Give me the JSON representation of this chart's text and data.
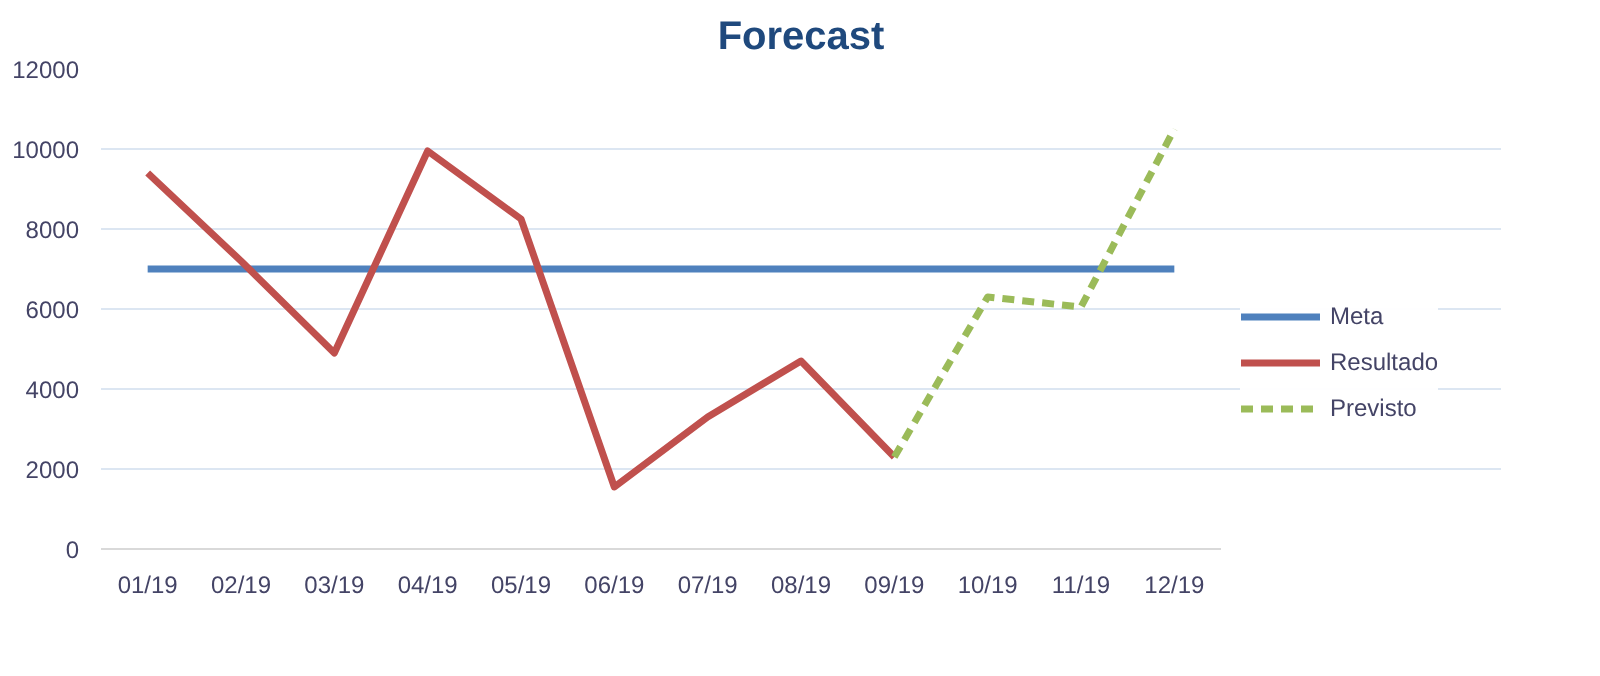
{
  "chart_data": {
    "type": "line",
    "title": "Forecast",
    "categories": [
      "01/19",
      "02/19",
      "03/19",
      "04/19",
      "05/19",
      "06/19",
      "07/19",
      "08/19",
      "09/19",
      "10/19",
      "11/19",
      "12/19"
    ],
    "series": [
      {
        "name": "Meta",
        "color": "#4f81bd",
        "values": [
          7000,
          7000,
          7000,
          7000,
          7000,
          7000,
          7000,
          7000,
          7000,
          7000,
          7000,
          7000
        ]
      },
      {
        "name": "Resultado",
        "color": "#c0504d",
        "values": [
          9400,
          7200,
          4900,
          9950,
          8250,
          1550,
          3300,
          4700,
          2300,
          null,
          null,
          null
        ]
      },
      {
        "name": "Previsto",
        "color": "#9bbb59",
        "line_style": "dashed",
        "values": [
          null,
          null,
          null,
          null,
          null,
          null,
          null,
          null,
          2300,
          6300,
          6050,
          10500
        ]
      }
    ],
    "ylim": [
      0,
      12000
    ],
    "yticks": [
      0,
      2000,
      4000,
      6000,
      8000,
      10000,
      12000
    ],
    "grid": "y",
    "legend": "right"
  }
}
